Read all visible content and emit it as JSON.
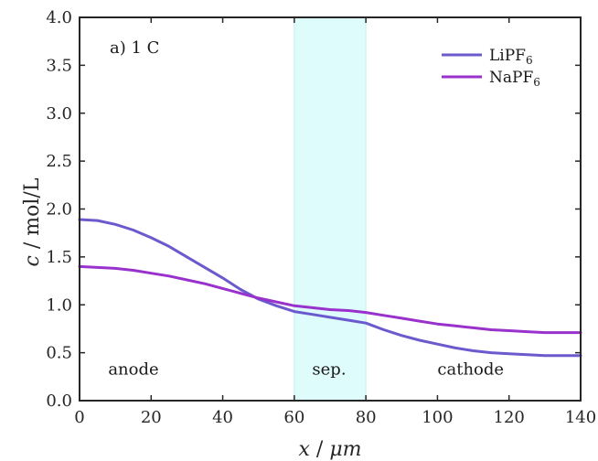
{
  "chart_data": {
    "type": "line",
    "annotation_title": "a) 1 C",
    "xlabel_var": "x",
    "xlabel_unit": "μm",
    "ylabel_var": "c",
    "ylabel_unit": "mol/L",
    "xlim": [
      0,
      140
    ],
    "ylim": [
      0,
      4
    ],
    "xticks": [
      0,
      20,
      40,
      60,
      80,
      100,
      120,
      140
    ],
    "yticks": [
      "0.0",
      "0.5",
      "1.0",
      "1.5",
      "2.0",
      "2.5",
      "3.0",
      "3.5",
      "4.0"
    ],
    "separator_region": {
      "x_start": 60,
      "x_end": 80,
      "color": "#dffcfc"
    },
    "region_labels": [
      {
        "text": "anode",
        "x": 8,
        "y": 0.27
      },
      {
        "text": "sep.",
        "x": 65,
        "y": 0.27
      },
      {
        "text": "cathode",
        "x": 100,
        "y": 0.27
      }
    ],
    "grid": false,
    "legend_placement": "top-right",
    "series": [
      {
        "name": "LiPF",
        "name_sub": "6",
        "color": "#6a5acd",
        "x": [
          0,
          5,
          10,
          15,
          20,
          25,
          30,
          35,
          40,
          45,
          50,
          55,
          60,
          65,
          70,
          75,
          80,
          85,
          90,
          95,
          100,
          105,
          110,
          115,
          120,
          125,
          130,
          135,
          140
        ],
        "values": [
          1.89,
          1.88,
          1.84,
          1.78,
          1.7,
          1.61,
          1.5,
          1.39,
          1.28,
          1.16,
          1.06,
          0.99,
          0.93,
          0.9,
          0.87,
          0.84,
          0.81,
          0.74,
          0.68,
          0.63,
          0.59,
          0.55,
          0.52,
          0.5,
          0.49,
          0.48,
          0.47,
          0.47,
          0.47
        ]
      },
      {
        "name": "NaPF",
        "name_sub": "6",
        "color": "#9932cc",
        "x": [
          0,
          5,
          10,
          15,
          20,
          25,
          30,
          35,
          40,
          45,
          50,
          55,
          60,
          65,
          70,
          75,
          80,
          85,
          90,
          95,
          100,
          105,
          110,
          115,
          120,
          125,
          130,
          135,
          140
        ],
        "values": [
          1.4,
          1.39,
          1.38,
          1.36,
          1.33,
          1.3,
          1.26,
          1.22,
          1.17,
          1.12,
          1.07,
          1.03,
          0.99,
          0.97,
          0.95,
          0.94,
          0.92,
          0.89,
          0.86,
          0.83,
          0.8,
          0.78,
          0.76,
          0.74,
          0.73,
          0.72,
          0.71,
          0.71,
          0.71
        ]
      }
    ]
  }
}
